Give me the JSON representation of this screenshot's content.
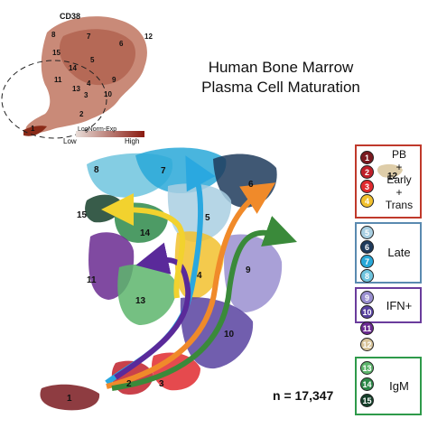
{
  "title": [
    "Human Bone Marrow",
    "Plasma Cell Maturation"
  ],
  "inset": {
    "gene": "CD38",
    "scale_title": "LogNorm-Exp",
    "scale_low": "Low",
    "scale_high": "High",
    "cluster_numbers": [
      "8",
      "7",
      "6",
      "15",
      "5",
      "12",
      "14",
      "11",
      "13",
      "4",
      "3",
      "9",
      "10",
      "2",
      "1"
    ]
  },
  "main": {
    "cluster_numbers": [
      "8",
      "7",
      "6",
      "12",
      "15",
      "5",
      "14",
      "11",
      "13",
      "4",
      "9",
      "10",
      "1",
      "2",
      "3"
    ],
    "n_label": "n = 17,347"
  },
  "clusters": [
    {
      "id": "1",
      "color": "#7a1a20"
    },
    {
      "id": "2",
      "color": "#c0202a"
    },
    {
      "id": "3",
      "color": "#e02a2f"
    },
    {
      "id": "4",
      "color": "#f2c12e"
    },
    {
      "id": "5",
      "color": "#a9cfe2"
    },
    {
      "id": "6",
      "color": "#1f3b5c"
    },
    {
      "id": "7",
      "color": "#29a8d8"
    },
    {
      "id": "8",
      "color": "#6fc4de"
    },
    {
      "id": "9",
      "color": "#9a8fd0"
    },
    {
      "id": "10",
      "color": "#5842a0"
    },
    {
      "id": "11",
      "color": "#6a2a90"
    },
    {
      "id": "12",
      "color": "#d8c49a"
    },
    {
      "id": "13",
      "color": "#5db56c"
    },
    {
      "id": "14",
      "color": "#2e8a4a"
    },
    {
      "id": "15",
      "color": "#15402a"
    }
  ],
  "legend_groups": [
    {
      "label": "PB\n+\nEarly\n+\nTrans",
      "box_color": "#c0392b",
      "members": [
        "1",
        "2",
        "3",
        "4"
      ]
    },
    {
      "label": "Late",
      "box_color": "#5a8ab0",
      "members": [
        "5",
        "6",
        "7",
        "8"
      ]
    },
    {
      "label": "IFN+",
      "box_color": "#6a3c9c",
      "members": [
        "9",
        "10"
      ]
    },
    {
      "label": "IgM",
      "box_color": "#2e9a4a",
      "members": [
        "13",
        "14",
        "15"
      ]
    }
  ],
  "arrows": [
    {
      "name": "arrow-yellow",
      "color": "#f2d22e"
    },
    {
      "name": "arrow-purple",
      "color": "#5a2a9a"
    },
    {
      "name": "arrow-blue",
      "color": "#2aa8e0"
    },
    {
      "name": "arrow-orange",
      "color": "#f08a2a"
    },
    {
      "name": "arrow-green",
      "color": "#3a8a3a"
    }
  ]
}
